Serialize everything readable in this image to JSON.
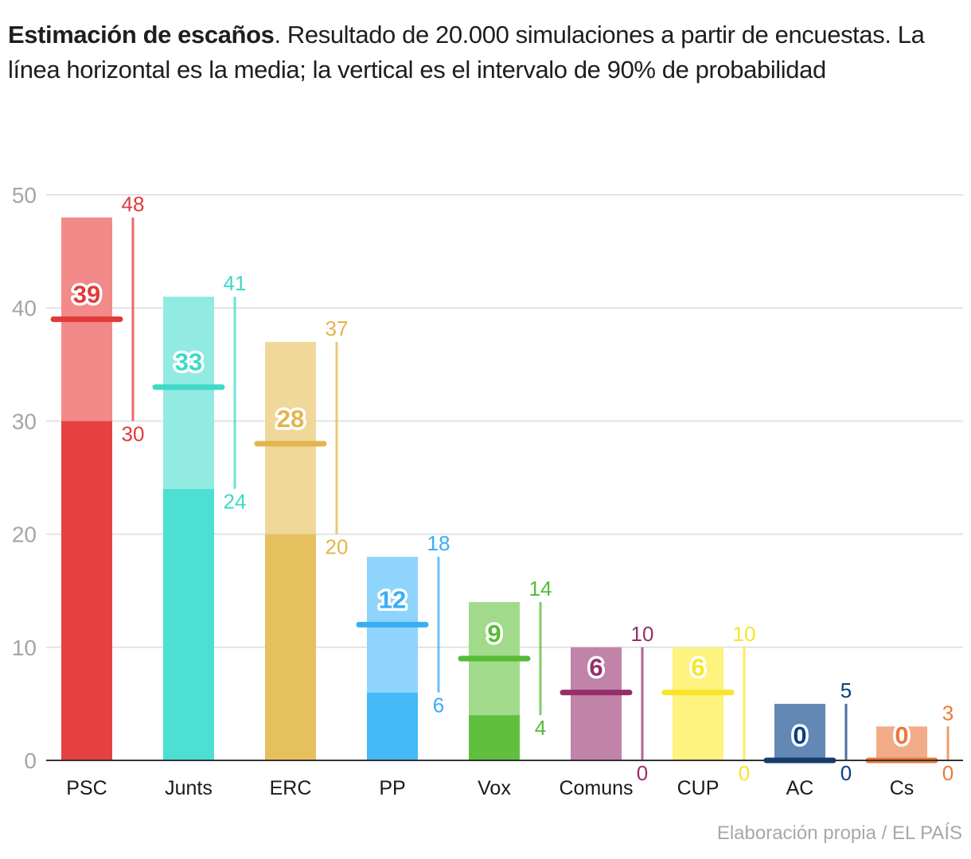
{
  "title": {
    "bold": "Estimación de escaños",
    "rest": ". Resultado de 20.000 simulaciones a partir de encuestas. La línea horizontal es la media; la vertical es el intervalo de 90% de probabilidad"
  },
  "source": "Elaboración propia / EL PAÍS",
  "chart_data": {
    "type": "bar",
    "title": "Estimación de escaños",
    "subtitle": "Resultado de 20.000 simulaciones a partir de encuestas. La línea horizontal es la media; la vertical es el intervalo de 90% de probabilidad",
    "xlabel": "",
    "ylabel": "",
    "ylim": [
      0,
      50
    ],
    "yticks": [
      0,
      10,
      20,
      30,
      40,
      50
    ],
    "grid": true,
    "legend": "none",
    "categories": [
      "PSC",
      "Junts",
      "ERC",
      "PP",
      "Vox",
      "Comuns",
      "CUP",
      "AC",
      "Cs"
    ],
    "series": [
      {
        "name": "Media",
        "values": [
          39,
          33,
          28,
          12,
          9,
          6,
          6,
          0,
          0
        ]
      },
      {
        "name": "Intervalo 90% - mínimo",
        "values": [
          30,
          24,
          20,
          6,
          4,
          0,
          0,
          0,
          0
        ]
      },
      {
        "name": "Intervalo 90% - máximo",
        "values": [
          48,
          41,
          37,
          18,
          14,
          10,
          10,
          5,
          3
        ]
      }
    ],
    "colors": {
      "PSC": {
        "dark": "#e64141",
        "light": "#f18a88",
        "label": "#e03a3a",
        "mean": "#e03a3a"
      },
      "Junts": {
        "dark": "#4be0d1",
        "light": "#91ebe2",
        "label": "#3fd9c8",
        "mean": "#3fd9c8"
      },
      "ERC": {
        "dark": "#e7c05e",
        "light": "#f0d79a",
        "label": "#e3b54d",
        "mean": "#e3b54d"
      },
      "PP": {
        "dark": "#45b8f8",
        "light": "#8ed4fc",
        "label": "#3aaef5",
        "mean": "#3aaef5"
      },
      "Vox": {
        "dark": "#60c03e",
        "light": "#a0da8a",
        "label": "#57bb35",
        "mean": "#57bb35"
      },
      "Comuns": {
        "dark": "#c183a7",
        "light": "#c183a7",
        "label": "#952f6b",
        "mean": "#952f6b"
      },
      "CUP": {
        "dark": "#fdf37e",
        "light": "#fdf37e",
        "label": "#f8e42a",
        "mean": "#f8e42a"
      },
      "AC": {
        "dark": "#6488b6",
        "light": "#6488b6",
        "label": "#0a3f86",
        "mean": "#0a3f86"
      },
      "Cs": {
        "dark": "#f2ad88",
        "light": "#f2ad88",
        "label": "#eb7a3a",
        "mean": "#eb7a3a"
      }
    }
  }
}
